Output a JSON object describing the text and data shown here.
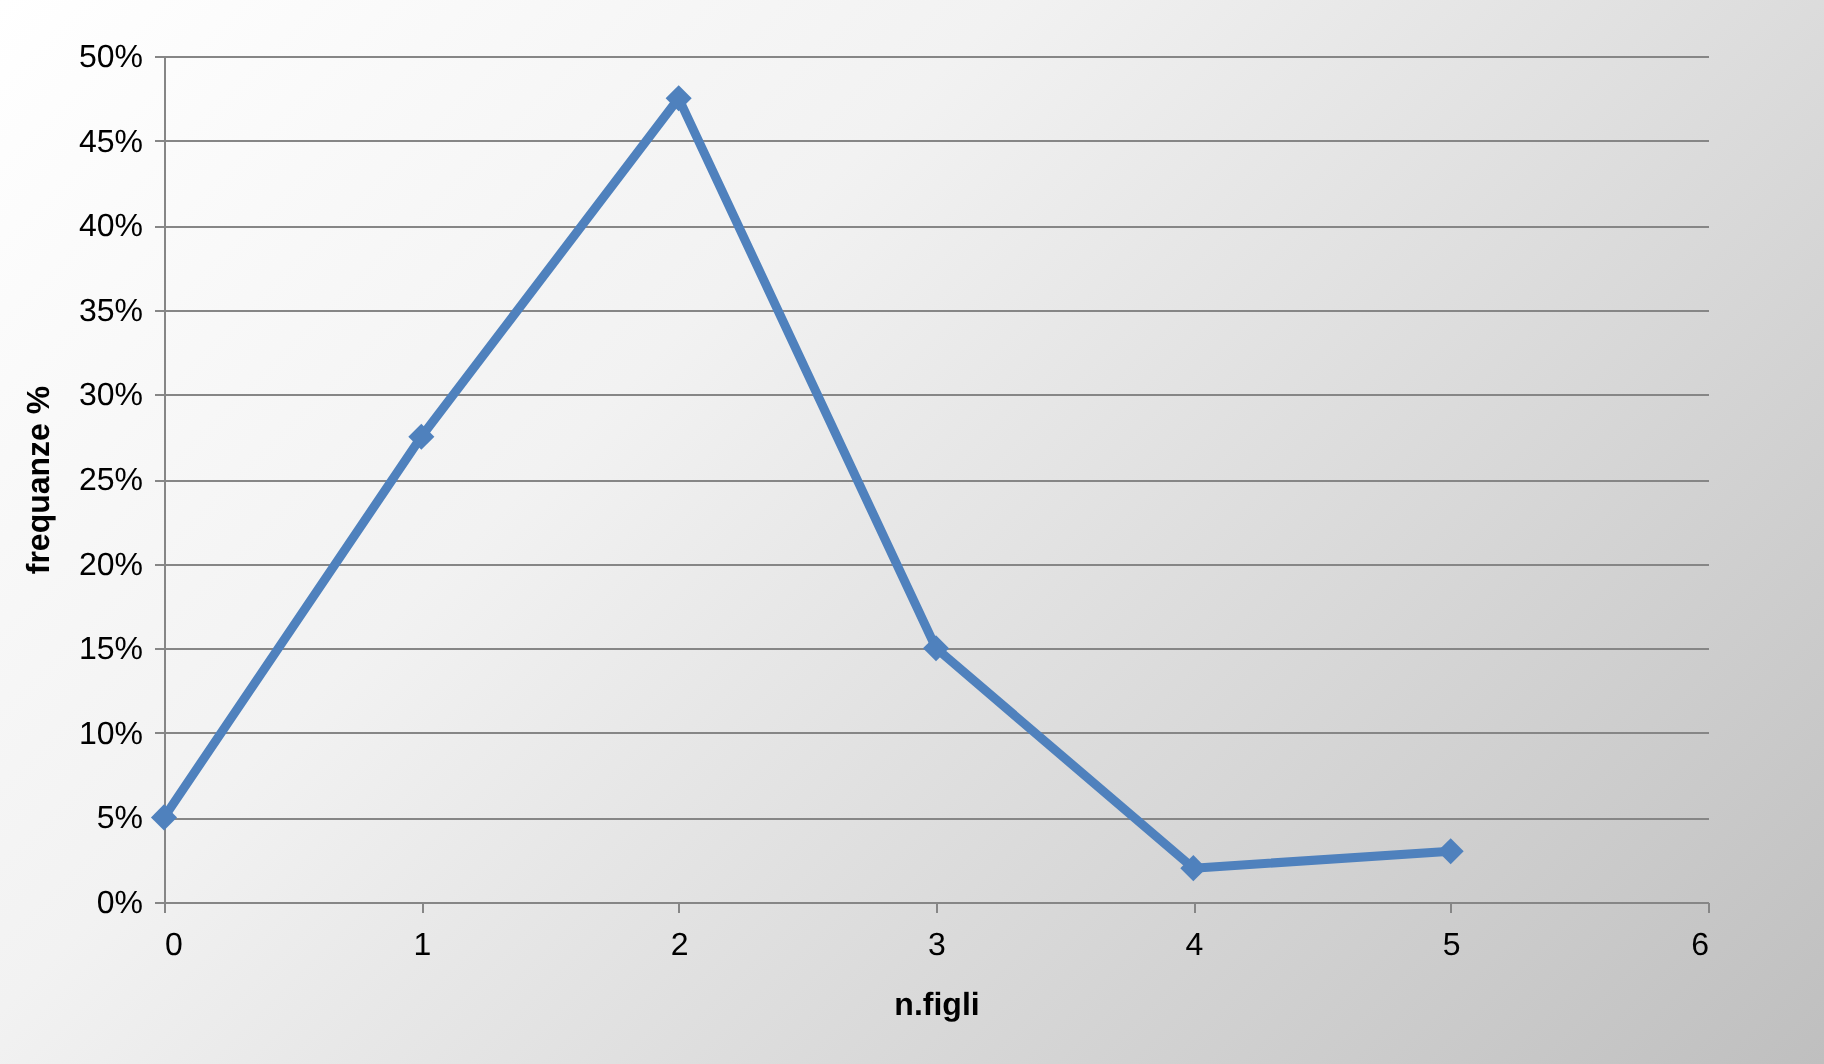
{
  "chart_data": {
    "type": "line",
    "xlabel": "n.figli",
    "ylabel": "frequanze %",
    "x": [
      0,
      1,
      2,
      3,
      4,
      5
    ],
    "series": [
      {
        "color": "#4f81bd",
        "values": [
          5,
          27.5,
          47.5,
          15,
          2,
          3
        ]
      }
    ],
    "xlim": [
      0,
      6
    ],
    "xticks": [
      0,
      1,
      2,
      3,
      4,
      5,
      6
    ],
    "ylim": [
      0,
      50
    ],
    "yticks": [
      {
        "value": 0,
        "label": "0%"
      },
      {
        "value": 5,
        "label": "5%"
      },
      {
        "value": 10,
        "label": "10%"
      },
      {
        "value": 15,
        "label": "15%"
      },
      {
        "value": 20,
        "label": "20%"
      },
      {
        "value": 25,
        "label": "25%"
      },
      {
        "value": 30,
        "label": "30%"
      },
      {
        "value": 35,
        "label": "35%"
      },
      {
        "value": 40,
        "label": "40%"
      },
      {
        "value": 45,
        "label": "45%"
      },
      {
        "value": 50,
        "label": "50%"
      }
    ],
    "grid": "y",
    "marker": "diamond",
    "line_style": "solid",
    "legend": false
  }
}
